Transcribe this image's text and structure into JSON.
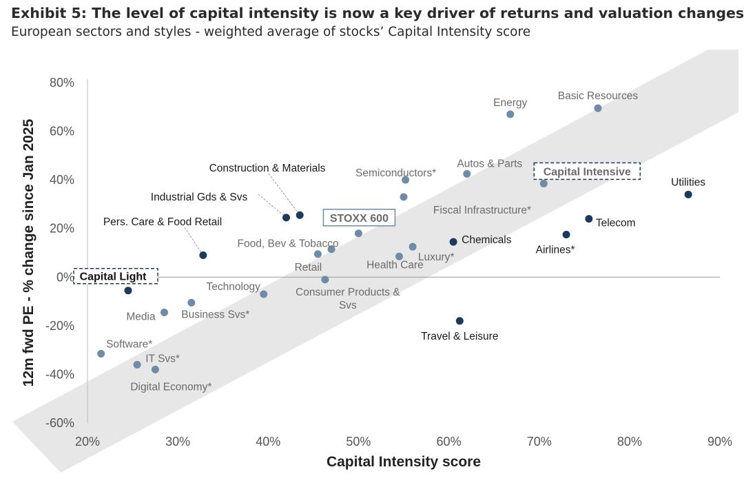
{
  "header": {
    "title": "Exhibit 5: The level of capital intensity is now a key driver of returns and valuation changes",
    "subtitle": "European sectors and styles - weighted average of stocks’ Capital Intensity score"
  },
  "colors": {
    "dark_point": "#1b3a5c",
    "light_point": "#6f8ba6",
    "dark_label": "#1a1a1a",
    "light_label": "#6b6b6b",
    "band": "#e7e7e7",
    "box_border": "#1b3a5c",
    "stoxx_box": "#6f8ba6"
  },
  "chart_data": {
    "type": "scatter",
    "xlabel": "Capital Intensity score",
    "ylabel": "12m fwd PE - % change since Jan 2025",
    "xlim": [
      20,
      90
    ],
    "ylim": [
      -60,
      80
    ],
    "x_ticks": [
      "20%",
      "30%",
      "40%",
      "50%",
      "60%",
      "70%",
      "80%",
      "90%"
    ],
    "y_ticks": [
      "80%",
      "60%",
      "40%",
      "20%",
      "0%",
      "-20%",
      "-40%",
      "-60%"
    ],
    "band": "light grey diagonal band from lower-left to upper-right",
    "points": [
      {
        "name": "Capital Light",
        "x": 24.5,
        "y": -5.5,
        "style": "dark",
        "boxed": true
      },
      {
        "name": "Pers. Care & Food Retail",
        "x": 32.8,
        "y": 9,
        "style": "dark"
      },
      {
        "name": "Industrial Gds & Svs",
        "x": 42.0,
        "y": 24.5,
        "style": "dark"
      },
      {
        "name": "Construction & Materials",
        "x": 43.5,
        "y": 25.5,
        "style": "dark"
      },
      {
        "name": "Chemicals",
        "x": 60.5,
        "y": 14.5,
        "style": "dark"
      },
      {
        "name": "Travel & Leisure",
        "x": 61.2,
        "y": -18,
        "style": "dark"
      },
      {
        "name": "Airlines*",
        "x": 73.0,
        "y": 17.5,
        "style": "dark"
      },
      {
        "name": "Telecom",
        "x": 75.5,
        "y": 24,
        "style": "dark"
      },
      {
        "name": "Utilities",
        "x": 86.5,
        "y": 34,
        "style": "dark"
      },
      {
        "name": "Software*",
        "x": 21.5,
        "y": -31.5,
        "style": "light"
      },
      {
        "name": "IT Svs*",
        "x": 25.5,
        "y": -36,
        "style": "light"
      },
      {
        "name": "Digital Economy*",
        "x": 27.5,
        "y": -38,
        "style": "light"
      },
      {
        "name": "Media",
        "x": 28.5,
        "y": -14.5,
        "style": "light"
      },
      {
        "name": "Business Svs*",
        "x": 31.5,
        "y": -10.5,
        "style": "light"
      },
      {
        "name": "Technology",
        "x": 39.5,
        "y": -7,
        "style": "light"
      },
      {
        "name": "Retail",
        "x": 45.5,
        "y": 9.5,
        "style": "light"
      },
      {
        "name": "Food, Bev & Tobacco",
        "x": 47.0,
        "y": 11.5,
        "style": "light"
      },
      {
        "name": "Consumer Products & Svs",
        "x": 46.3,
        "y": -1,
        "style": "light"
      },
      {
        "name": "STOXX 600",
        "x": 50.0,
        "y": 18,
        "style": "light",
        "boxed": true
      },
      {
        "name": "Health Care",
        "x": 54.5,
        "y": 8.5,
        "style": "light"
      },
      {
        "name": "Luxury*",
        "x": 56.0,
        "y": 12.5,
        "style": "light"
      },
      {
        "name": "Fiscal Infrastructure*",
        "x": 55.0,
        "y": 33,
        "style": "light"
      },
      {
        "name": "Semiconductors*",
        "x": 55.2,
        "y": 40,
        "style": "light"
      },
      {
        "name": "Autos & Parts",
        "x": 62.0,
        "y": 42.5,
        "style": "light"
      },
      {
        "name": "Energy",
        "x": 66.8,
        "y": 67,
        "style": "light"
      },
      {
        "name": "Basic Resources",
        "x": 76.5,
        "y": 69.5,
        "style": "light"
      },
      {
        "name": "Capital Intensive",
        "x": 70.5,
        "y": 38.5,
        "style": "light",
        "boxed": true
      }
    ]
  }
}
